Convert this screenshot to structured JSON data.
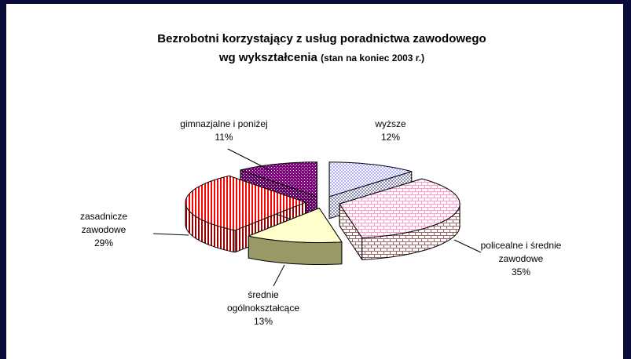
{
  "chart_data": {
    "type": "pie3d",
    "title": "Bezrobotni korzystający z usług poradnictwa zawodowego",
    "subtitle": "wg wykształcenia",
    "note": "(stan na koniec 2003 r.)",
    "categories": [
      "wyższe",
      "policealne i średnie zawodowe",
      "średnie ogólnokształcące",
      "zasadnicze zawodowe",
      "gimnazjalne i poniżej"
    ],
    "values": [
      12,
      35,
      13,
      29,
      11
    ],
    "value_labels": [
      "12%",
      "35%",
      "13%",
      "29%",
      "11%"
    ],
    "colors": [
      "#9999ff",
      "#ff99cc",
      "#ffffcc",
      "#ff0000",
      "#800080"
    ],
    "side_colors": [
      "#666699",
      "#996666",
      "#999966",
      "#990000",
      "#660066"
    ],
    "patterns": [
      "dots",
      "bricks",
      "solid",
      "vstripes",
      "checker"
    ]
  }
}
